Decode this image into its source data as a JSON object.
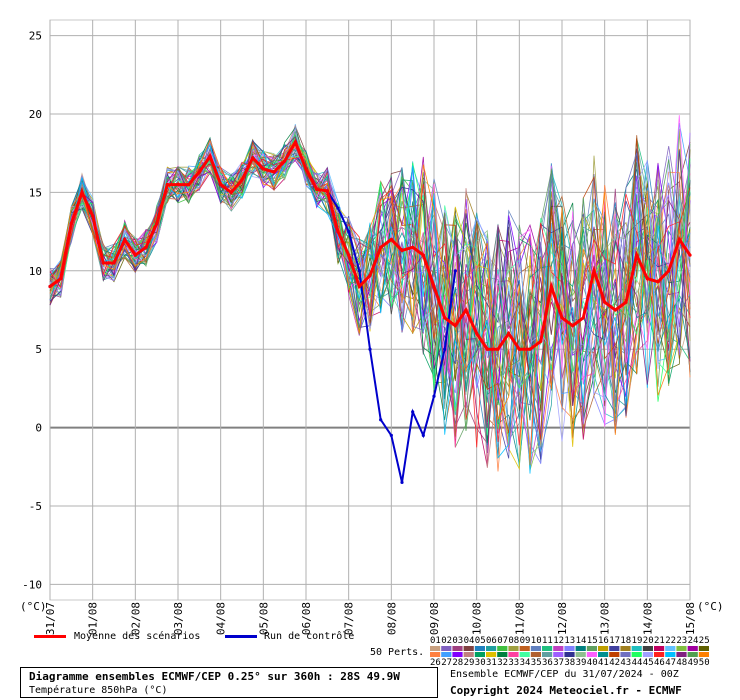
{
  "chart_data": {
    "type": "line",
    "y_unit_label": "(°C)",
    "ylim": [
      -11,
      26
    ],
    "yticks": [
      25,
      20,
      15,
      10,
      5,
      0,
      -5,
      -10
    ],
    "x_tick_labels": [
      "31/07",
      "01/08",
      "02/08",
      "03/08",
      "04/08",
      "05/08",
      "06/08",
      "07/08",
      "08/08",
      "09/08",
      "10/08",
      "11/08",
      "12/08",
      "13/08",
      "14/08",
      "15/08"
    ],
    "step_hours": 6,
    "grid": true,
    "mean": [
      9,
      9.5,
      13,
      15,
      13.5,
      10.5,
      10.5,
      12,
      11,
      11.5,
      13,
      15.5,
      15.5,
      15.5,
      16.3,
      17.3,
      15.5,
      15,
      15.8,
      17.2,
      16.5,
      16.3,
      17,
      18.2,
      16.5,
      15.2,
      15.1,
      12.5,
      11,
      9,
      9.7,
      11.5,
      12,
      11.3,
      11.5,
      11,
      9,
      7,
      6.5,
      7.5,
      6,
      5,
      5,
      6,
      5,
      5,
      5.5,
      9,
      7,
      6.5,
      7,
      10,
      8,
      7.5,
      8,
      11,
      9.5,
      9.3,
      10,
      12,
      11
    ],
    "control": [
      9,
      9.5,
      13,
      15,
      13.5,
      10.5,
      10.5,
      12,
      11,
      11.5,
      13,
      15.5,
      15.5,
      15.5,
      16.3,
      17.3,
      15.5,
      15,
      15.8,
      17.2,
      16.5,
      16.3,
      17,
      18.2,
      16.5,
      15.2,
      15.1,
      14,
      12.5,
      10,
      5,
      0.5,
      -0.5,
      -3.5,
      1,
      -0.5,
      2,
      5,
      10
    ],
    "perturbation_count": 50,
    "legend": {
      "mean_label": "Moyenne des scénarios",
      "control_label": "Run de contrôle",
      "perts_label": "50 Perts.",
      "pert_ids_row1": [
        "01",
        "02",
        "03",
        "04",
        "05",
        "06",
        "07",
        "08",
        "09",
        "10",
        "11",
        "12",
        "13",
        "14",
        "15",
        "16",
        "17",
        "18",
        "19",
        "20",
        "21",
        "22",
        "23",
        "24",
        "25"
      ],
      "pert_ids_row2": [
        "26",
        "27",
        "28",
        "29",
        "30",
        "31",
        "32",
        "33",
        "34",
        "35",
        "36",
        "37",
        "38",
        "39",
        "40",
        "41",
        "42",
        "43",
        "44",
        "45",
        "46",
        "47",
        "48",
        "49",
        "50"
      ]
    },
    "colors": {
      "mean": "#ff0000",
      "control": "#0000cc",
      "grid": "#b0b0b0",
      "zero_line": "#808080"
    }
  },
  "footer": {
    "title": "Diagramme ensembles ECMWF/CEP 0.25° sur 360h : 28S 49.9W",
    "subtitle": "Température 850hPa (°C)",
    "run_info": "Ensemble ECMWF/CEP du 31/07/2024 - 00Z",
    "copyright": "Copyright 2024 Meteociel.fr - ECMWF"
  }
}
